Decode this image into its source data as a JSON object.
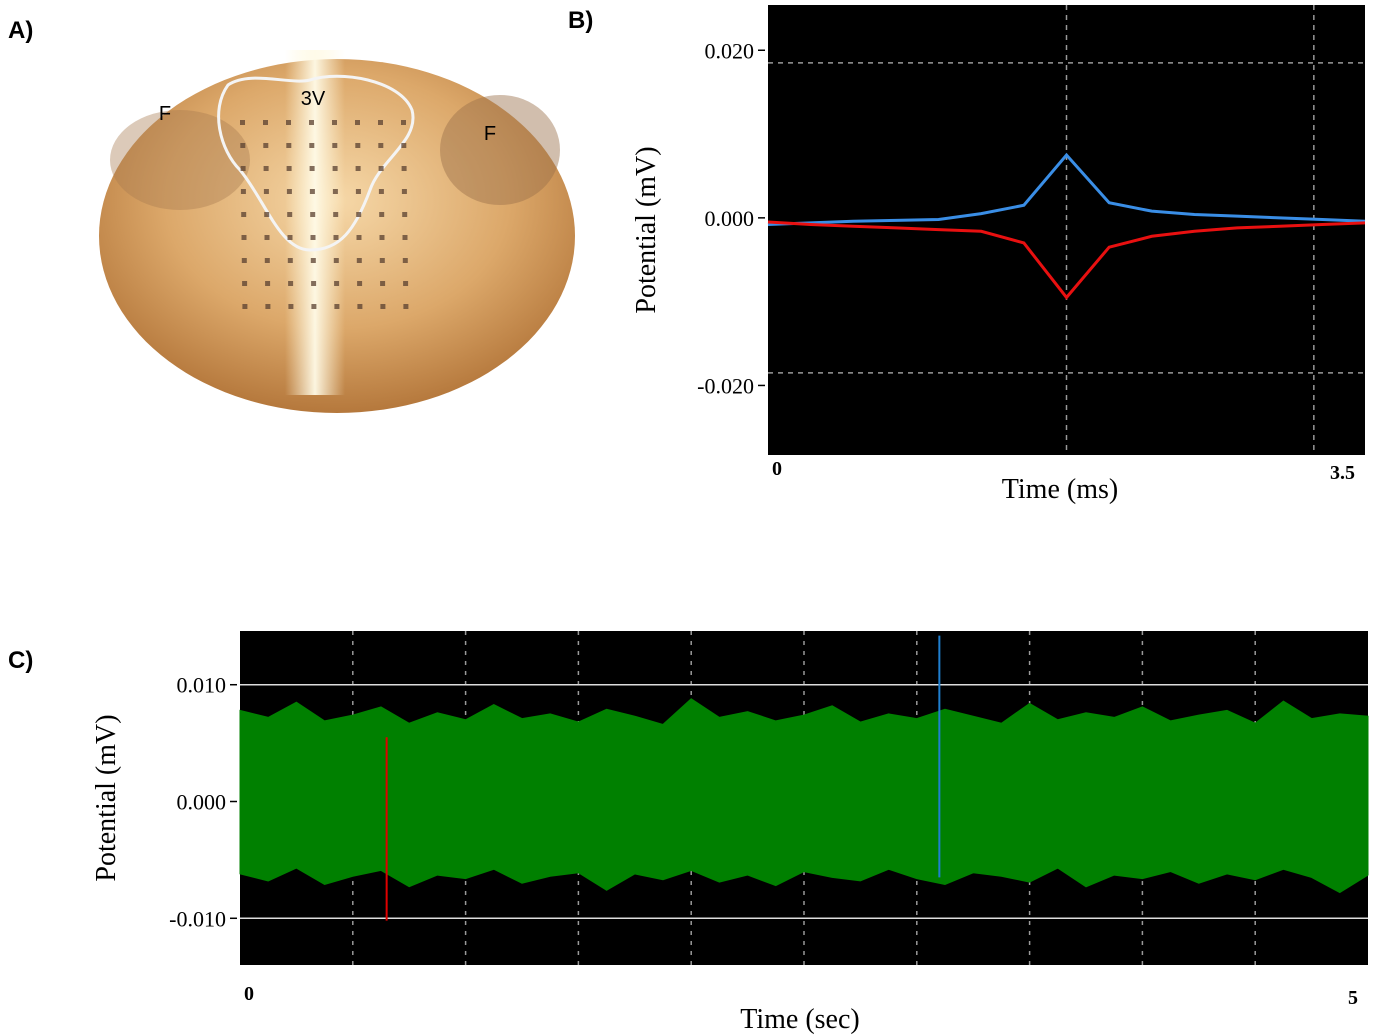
{
  "photo": {
    "panel_label": "A)",
    "labels": [
      "F",
      "3V",
      "F"
    ]
  },
  "chart_data": [
    {
      "type": "line",
      "panel_label": "B)",
      "xlabel": "Time (ms)",
      "ylabel": "Potential (mV)",
      "xlim": [
        0,
        3.5
      ],
      "xticks": [
        0,
        3.5
      ],
      "ylim": [
        -0.0283,
        0.0254
      ],
      "yticks": [
        {
          "value": 0.02,
          "label": "0.020"
        },
        {
          "value": 0,
          "label": "0.000"
        },
        {
          "value": -0.02,
          "label": "-0.020"
        }
      ],
      "x_gridlines": [
        1.75,
        3.2
      ],
      "y_gridlines": [
        0.0185,
        -0.0185
      ],
      "x": [
        0,
        0.25,
        0.5,
        0.75,
        1,
        1.25,
        1.5,
        1.75,
        2,
        2.25,
        2.5,
        2.75,
        3,
        3.25,
        3.5
      ],
      "series": [
        {
          "color": "#3a8ee6",
          "values": [
            -0.0008,
            -0.0006,
            -0.0004,
            -0.0003,
            -0.0002,
            0.0005,
            0.0015,
            0.0075,
            0.0018,
            0.0008,
            0.0004,
            0.0002,
            0.0,
            -0.0002,
            -0.0004
          ]
        },
        {
          "color": "#e81010",
          "values": [
            -0.0005,
            -0.0008,
            -0.001,
            -0.0012,
            -0.0014,
            -0.0016,
            -0.003,
            -0.0095,
            -0.0035,
            -0.0022,
            -0.0016,
            -0.0012,
            -0.001,
            -0.0008,
            -0.0006
          ]
        }
      ]
    },
    {
      "type": "band",
      "panel_label": "C)",
      "xlabel": "Time (sec)",
      "ylabel": "Potential (mV)",
      "xlim": [
        0,
        5
      ],
      "xticks": [
        0,
        5
      ],
      "ylim": [
        -0.014,
        0.0146
      ],
      "yticks": [
        {
          "value": 0.01,
          "label": "0.010"
        },
        {
          "value": 0,
          "label": "0.000"
        },
        {
          "value": -0.01,
          "label": "-0.010"
        }
      ],
      "x_gridlines": [
        0.5,
        1,
        1.5,
        2,
        2.5,
        3,
        3.5,
        4,
        4.5
      ],
      "y_gridlines": [
        0.01,
        -0.01
      ],
      "color": "#008000",
      "x": [
        0,
        0.125,
        0.25,
        0.375,
        0.5,
        0.625,
        0.75,
        0.875,
        1,
        1.125,
        1.25,
        1.375,
        1.5,
        1.625,
        1.75,
        1.875,
        2,
        2.125,
        2.25,
        2.375,
        2.5,
        2.625,
        2.75,
        2.875,
        3,
        3.125,
        3.25,
        3.375,
        3.5,
        3.625,
        3.75,
        3.875,
        4,
        4.125,
        4.25,
        4.375,
        4.5,
        4.625,
        4.75,
        4.875,
        5
      ],
      "envelope_upper": [
        0.0078,
        0.0072,
        0.0085,
        0.0069,
        0.0074,
        0.0081,
        0.0067,
        0.0076,
        0.007,
        0.0083,
        0.0071,
        0.0075,
        0.0068,
        0.0079,
        0.0073,
        0.0066,
        0.0088,
        0.0072,
        0.0077,
        0.0069,
        0.0074,
        0.0082,
        0.0068,
        0.0075,
        0.0071,
        0.0079,
        0.0073,
        0.0067,
        0.0084,
        0.007,
        0.0076,
        0.0072,
        0.0081,
        0.0069,
        0.0074,
        0.0078,
        0.0067,
        0.0086,
        0.0071,
        0.0075,
        0.0073
      ],
      "envelope_lower": [
        -0.0062,
        -0.0068,
        -0.0057,
        -0.0071,
        -0.0064,
        -0.0059,
        -0.0073,
        -0.0063,
        -0.0066,
        -0.0058,
        -0.007,
        -0.0064,
        -0.0061,
        -0.0076,
        -0.0062,
        -0.0067,
        -0.0059,
        -0.0069,
        -0.0063,
        -0.0072,
        -0.006,
        -0.0065,
        -0.0068,
        -0.0058,
        -0.0066,
        -0.0071,
        -0.0061,
        -0.0064,
        -0.0069,
        -0.0057,
        -0.0073,
        -0.0063,
        -0.0066,
        -0.006,
        -0.007,
        -0.0062,
        -0.0067,
        -0.0058,
        -0.0065,
        -0.0078,
        -0.0063
      ],
      "spikes": [
        {
          "x": 0.65,
          "low": -0.0102,
          "high": 0.0055,
          "color": "#e00000"
        },
        {
          "x": 3.1,
          "low": -0.0065,
          "high": 0.0142,
          "color": "#1f7fd0"
        }
      ]
    }
  ]
}
